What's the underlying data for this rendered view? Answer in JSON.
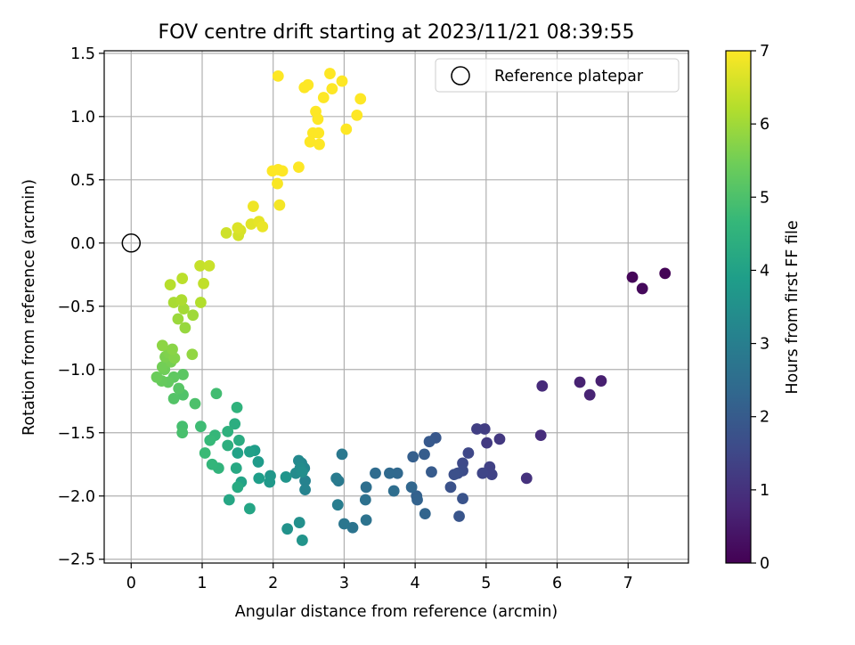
{
  "chart_data": {
    "type": "scatter",
    "title": "FOV centre drift starting at 2023/11/21 08:39:55",
    "xlabel": "Angular distance from reference (arcmin)",
    "ylabel": "Rotation from reference (arcmin)",
    "xlim": [
      -0.38,
      7.85
    ],
    "ylim": [
      -2.53,
      1.52
    ],
    "xticks": [
      0,
      1,
      2,
      3,
      4,
      5,
      6,
      7
    ],
    "xtick_labels": [
      "0",
      "1",
      "2",
      "3",
      "4",
      "5",
      "6",
      "7"
    ],
    "yticks": [
      -2.5,
      -2.0,
      -1.5,
      -1.0,
      -0.5,
      0.0,
      0.5,
      1.0,
      1.5
    ],
    "ytick_labels": [
      "−2.5",
      "−2.0",
      "−1.5",
      "−1.0",
      "−0.5",
      "0.0",
      "0.5",
      "1.0",
      "1.5"
    ],
    "grid": true,
    "legend": {
      "position": "upper-right",
      "entries": [
        "Reference platepar"
      ]
    },
    "reference_point": {
      "x": 0.0,
      "y": 0.0,
      "marker": "open-circle"
    },
    "colorbar": {
      "label": "Hours from first FF file",
      "range": [
        0,
        7
      ],
      "ticks": [
        0,
        1,
        2,
        3,
        4,
        5,
        6,
        7
      ],
      "tick_labels": [
        "0",
        "1",
        "2",
        "3",
        "4",
        "5",
        "6",
        "7"
      ],
      "colormap": "viridis"
    },
    "points": [
      [
        7.52,
        -0.24,
        0.05
      ],
      [
        7.06,
        -0.27,
        0.1
      ],
      [
        7.2,
        -0.36,
        0.15
      ],
      [
        6.62,
        -1.09,
        0.6
      ],
      [
        6.32,
        -1.1,
        0.65
      ],
      [
        6.46,
        -1.2,
        0.7
      ],
      [
        5.79,
        -1.13,
        0.85
      ],
      [
        5.77,
        -1.52,
        0.9
      ],
      [
        5.57,
        -1.86,
        1.0
      ],
      [
        5.19,
        -1.55,
        1.15
      ],
      [
        5.01,
        -1.58,
        1.2
      ],
      [
        4.98,
        -1.47,
        1.25
      ],
      [
        4.87,
        -1.47,
        1.3
      ],
      [
        5.05,
        -1.77,
        1.35
      ],
      [
        5.08,
        -1.83,
        1.4
      ],
      [
        4.95,
        -1.82,
        1.45
      ],
      [
        4.75,
        -1.66,
        1.5
      ],
      [
        4.67,
        -1.74,
        1.55
      ],
      [
        4.67,
        -1.8,
        1.6
      ],
      [
        4.6,
        -1.82,
        1.65
      ],
      [
        4.55,
        -1.83,
        1.7
      ],
      [
        4.5,
        -1.93,
        1.75
      ],
      [
        4.67,
        -2.02,
        1.8
      ],
      [
        4.62,
        -2.16,
        1.85
      ],
      [
        4.29,
        -1.54,
        1.9
      ],
      [
        4.2,
        -1.57,
        1.95
      ],
      [
        4.23,
        -1.81,
        2.0
      ],
      [
        4.13,
        -1.67,
        2.05
      ],
      [
        3.97,
        -1.69,
        2.1
      ],
      [
        4.02,
        -2.0,
        2.15
      ],
      [
        4.03,
        -2.03,
        2.2
      ],
      [
        4.14,
        -2.14,
        2.25
      ],
      [
        3.95,
        -1.93,
        2.3
      ],
      [
        3.75,
        -1.82,
        2.35
      ],
      [
        3.64,
        -1.82,
        2.4
      ],
      [
        3.44,
        -1.82,
        2.45
      ],
      [
        3.7,
        -1.96,
        2.5
      ],
      [
        3.31,
        -1.93,
        2.55
      ],
      [
        3.3,
        -2.03,
        2.6
      ],
      [
        3.31,
        -2.19,
        2.65
      ],
      [
        3.12,
        -2.25,
        2.7
      ],
      [
        3.0,
        -2.22,
        2.75
      ],
      [
        2.97,
        -1.67,
        2.8
      ],
      [
        2.92,
        -1.88,
        2.85
      ],
      [
        2.89,
        -1.86,
        2.9
      ],
      [
        2.91,
        -2.07,
        2.95
      ],
      [
        2.45,
        -1.88,
        3.1
      ],
      [
        2.45,
        -1.95,
        3.15
      ],
      [
        2.44,
        -1.78,
        3.2
      ],
      [
        2.4,
        -1.74,
        3.25
      ],
      [
        2.36,
        -1.72,
        3.3
      ],
      [
        2.32,
        -1.82,
        3.35
      ],
      [
        2.38,
        -1.78,
        3.4
      ],
      [
        2.41,
        -1.81,
        3.45
      ],
      [
        2.37,
        -2.21,
        3.5
      ],
      [
        2.2,
        -2.26,
        3.55
      ],
      [
        2.41,
        -2.35,
        3.6
      ],
      [
        2.18,
        -1.85,
        3.65
      ],
      [
        1.96,
        -1.84,
        3.7
      ],
      [
        1.95,
        -1.89,
        3.75
      ],
      [
        1.79,
        -1.73,
        3.8
      ],
      [
        1.74,
        -1.64,
        3.85
      ],
      [
        1.8,
        -1.86,
        3.9
      ],
      [
        1.67,
        -1.65,
        3.95
      ],
      [
        1.5,
        -1.66,
        4.0
      ],
      [
        1.55,
        -1.89,
        4.05
      ],
      [
        1.67,
        -2.1,
        4.1
      ],
      [
        1.38,
        -2.03,
        4.15
      ],
      [
        1.48,
        -1.78,
        4.2
      ],
      [
        1.5,
        -1.93,
        4.25
      ],
      [
        1.52,
        -1.56,
        4.3
      ],
      [
        1.46,
        -1.43,
        4.35
      ],
      [
        1.36,
        -1.6,
        4.4
      ],
      [
        1.36,
        -1.49,
        4.45
      ],
      [
        1.49,
        -1.3,
        4.5
      ],
      [
        1.23,
        -1.78,
        4.55
      ],
      [
        1.14,
        -1.75,
        4.6
      ],
      [
        1.18,
        -1.52,
        4.65
      ],
      [
        1.11,
        -1.56,
        4.7
      ],
      [
        1.04,
        -1.66,
        4.75
      ],
      [
        0.98,
        -1.45,
        4.8
      ],
      [
        1.2,
        -1.19,
        4.85
      ],
      [
        0.72,
        -1.45,
        4.9
      ],
      [
        0.72,
        -1.5,
        4.95
      ],
      [
        0.9,
        -1.27,
        5.0
      ],
      [
        0.73,
        -1.2,
        5.05
      ],
      [
        0.6,
        -1.23,
        5.1
      ],
      [
        0.67,
        -1.15,
        5.15
      ],
      [
        0.73,
        -1.04,
        5.2
      ],
      [
        0.6,
        -1.06,
        5.25
      ],
      [
        0.52,
        -1.1,
        5.3
      ],
      [
        0.43,
        -1.09,
        5.35
      ],
      [
        0.36,
        -1.06,
        5.4
      ],
      [
        0.47,
        -1.0,
        5.45
      ],
      [
        0.44,
        -0.98,
        5.5
      ],
      [
        0.56,
        -0.94,
        5.55
      ],
      [
        0.48,
        -0.9,
        5.6
      ],
      [
        0.53,
        -0.87,
        5.65
      ],
      [
        0.61,
        -0.91,
        5.7
      ],
      [
        0.58,
        -0.84,
        5.75
      ],
      [
        0.44,
        -0.81,
        5.8
      ],
      [
        0.86,
        -0.88,
        5.85
      ],
      [
        0.76,
        -0.67,
        5.9
      ],
      [
        0.66,
        -0.6,
        5.95
      ],
      [
        0.87,
        -0.57,
        6.0
      ],
      [
        0.74,
        -0.52,
        6.05
      ],
      [
        0.6,
        -0.47,
        6.1
      ],
      [
        0.71,
        -0.45,
        6.15
      ],
      [
        0.98,
        -0.47,
        6.2
      ],
      [
        0.55,
        -0.33,
        6.25
      ],
      [
        0.72,
        -0.28,
        6.3
      ],
      [
        1.02,
        -0.32,
        6.35
      ],
      [
        0.97,
        -0.18,
        6.4
      ],
      [
        1.1,
        -0.18,
        6.45
      ],
      [
        1.34,
        0.08,
        6.5
      ],
      [
        1.51,
        0.06,
        6.55
      ],
      [
        1.54,
        0.1,
        6.6
      ],
      [
        1.5,
        0.12,
        6.65
      ],
      [
        1.69,
        0.15,
        6.7
      ],
      [
        1.8,
        0.17,
        6.75
      ],
      [
        1.85,
        0.13,
        6.8
      ],
      [
        1.72,
        0.29,
        6.85
      ],
      [
        2.09,
        0.3,
        6.9
      ],
      [
        2.06,
        0.47,
        6.95
      ],
      [
        1.99,
        0.57,
        7.0
      ],
      [
        2.13,
        0.57,
        7.0
      ],
      [
        2.07,
        0.58,
        7.0
      ],
      [
        2.36,
        0.6,
        7.0
      ],
      [
        2.07,
        1.32,
        7.0
      ],
      [
        2.44,
        1.23,
        7.0
      ],
      [
        2.49,
        1.25,
        7.0
      ],
      [
        2.52,
        0.8,
        7.0
      ],
      [
        2.56,
        0.87,
        7.0
      ],
      [
        2.64,
        0.87,
        7.0
      ],
      [
        2.6,
        1.04,
        7.0
      ],
      [
        2.63,
        0.98,
        7.0
      ],
      [
        2.65,
        0.78,
        7.0
      ],
      [
        2.71,
        1.15,
        7.0
      ],
      [
        2.8,
        1.34,
        7.0
      ],
      [
        2.83,
        1.22,
        7.0
      ],
      [
        2.97,
        1.28,
        7.0
      ],
      [
        3.03,
        0.9,
        7.0
      ],
      [
        3.18,
        1.01,
        7.0
      ],
      [
        3.23,
        1.14,
        7.0
      ]
    ]
  }
}
